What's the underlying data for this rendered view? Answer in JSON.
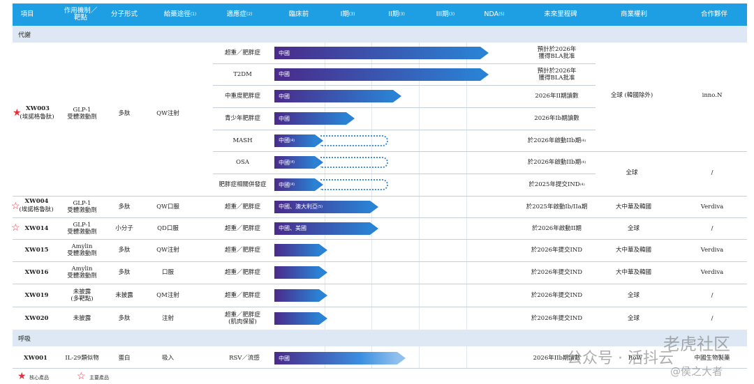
{
  "headers": {
    "project": "項目",
    "mechanism": "作用機制／\n靶點",
    "molecule": "分子形式",
    "route": "給藥途徑",
    "route_note": "(1)",
    "indication": "適應症",
    "indication_note": "(2)",
    "preclinical": "臨床前",
    "phase1": "I期",
    "phase1_note": "(3)",
    "phase2": "II期",
    "phase2_note": "(3)",
    "phase3": "III期",
    "phase3_note": "(3)",
    "nda": "NDA",
    "nda_note": "(5)",
    "milestone": "未來里程碑",
    "rights": "商業權利",
    "partner": "合作夥伴"
  },
  "sections": {
    "metabolic": "代謝",
    "respiratory": "呼吸"
  },
  "xw003": {
    "name": "XW003",
    "alias": "(埃諾格魯肽)",
    "mechanism": "GLP-1\n受體激動劑",
    "molecule": "多肽",
    "route": "QW注射",
    "rights_1": "全球 (韓國除外)",
    "partner_1": "inno.N",
    "rights_2": "全球",
    "partner_2": "/",
    "indications": [
      {
        "name": "超重／肥胖症",
        "region": "中國",
        "milestone": "預計於2026年\n獲得BLA批准",
        "progress": 0.93,
        "dotted": false
      },
      {
        "name": "T2DM",
        "region": "中國",
        "milestone": "預計於2026年\n獲得BLA批准",
        "progress": 0.93,
        "dotted": false
      },
      {
        "name": "中重度肥胖症",
        "region": "中國",
        "milestone": "2026年II期讀數",
        "progress": 0.55,
        "dotted": false
      },
      {
        "name": "青少年肥胖症",
        "region": "中國",
        "milestone": "2026年Ib期讀數",
        "progress": 0.35,
        "dotted": false
      },
      {
        "name": "MASH",
        "region": "中國",
        "region_note": "(4)",
        "milestone": "於2026年啟動IIb期",
        "milestone_note": "(4)",
        "progress": 0.22,
        "dotted": true
      },
      {
        "name": "OSA",
        "region": "中國",
        "region_note": "(4)",
        "milestone": "於2026年啟動IIb期",
        "milestone_note": "(4)",
        "progress": 0.22,
        "dotted": true
      },
      {
        "name": "肥胖症相關併發症",
        "region": "中國",
        "region_note": "(4)",
        "milestone": "於2025年提交IND",
        "milestone_note": "(4)",
        "progress": 0.22,
        "dotted": true
      }
    ]
  },
  "rows": [
    {
      "name": "XW004",
      "alias": "(埃諾格魯肽)",
      "mechanism": "GLP-1\n受體激動劑",
      "molecule": "多肽",
      "route": "QW口服",
      "indication": "超重／肥胖症",
      "region": "中國、澳大利亞",
      "region_note": "(5)",
      "milestone": "於2025年啟動Ib/IIa期",
      "rights": "大中華及韓國",
      "partner": "Verdiva",
      "progress": 0.45,
      "star": "outline"
    },
    {
      "name": "XW014",
      "alias": "",
      "mechanism": "GLP-1\n受體激動劑",
      "molecule": "小分子",
      "route": "QD口服",
      "indication": "超重／肥胖症",
      "region": "中國、美國",
      "milestone": "於2026年啟動II期",
      "rights": "全球",
      "partner": "/",
      "progress": 0.45,
      "star": "outline"
    },
    {
      "name": "XW015",
      "alias": "",
      "mechanism": "Amylin\n受體激動劑",
      "molecule": "多肽",
      "route": "QW注射",
      "indication": "超重／肥胖症",
      "region": "",
      "milestone": "於2026年提交IND",
      "rights": "大中華及韓國",
      "partner": "Verdiva",
      "progress": 0.23,
      "star": "none"
    },
    {
      "name": "XW016",
      "alias": "",
      "mechanism": "Amylin\n受體激動劑",
      "molecule": "多肽",
      "route": "口服",
      "indication": "超重／肥胖症",
      "region": "",
      "milestone": "於2026年提交IND",
      "rights": "大中華及韓國",
      "partner": "Verdiva",
      "progress": 0.23,
      "star": "none"
    },
    {
      "name": "XW019",
      "alias": "",
      "mechanism": "未披露\n(多靶點)",
      "molecule": "未披露",
      "route": "QM注射",
      "indication": "超重／肥胖症",
      "region": "",
      "milestone": "於2026年提交IND",
      "rights": "全球",
      "partner": "/",
      "progress": 0.23,
      "star": "none"
    },
    {
      "name": "XW020",
      "alias": "",
      "mechanism": "未披露",
      "molecule": "多肽",
      "route": "注射",
      "indication": "超重／肥胖症\n(肌肉保留)",
      "region": "",
      "milestone": "於2026年提交IND",
      "rights": "全球",
      "partner": "/",
      "progress": 0.23,
      "star": "none"
    }
  ],
  "xw001": {
    "name": "XW001",
    "mechanism": "IL-29類似物",
    "molecule": "蛋白",
    "route": "吸入",
    "indication": "RSV／流感",
    "region": "中國",
    "milestone": "2026年IIb期讀數",
    "rights": "RoW",
    "partner": "中國生物製藥",
    "progress": 0.57
  },
  "legend": {
    "core": "核心產品",
    "key": "主要產品"
  },
  "watermark": {
    "line1": "公众号 · 活抖云",
    "line2": "老虎社区",
    "line3": "@侯之大者"
  },
  "colors": {
    "header": "#1e9fe3",
    "section": "#dde8f4",
    "bar_start": "#4a2a8a",
    "bar_end": "#2a82d4",
    "star": "#e8303a"
  }
}
